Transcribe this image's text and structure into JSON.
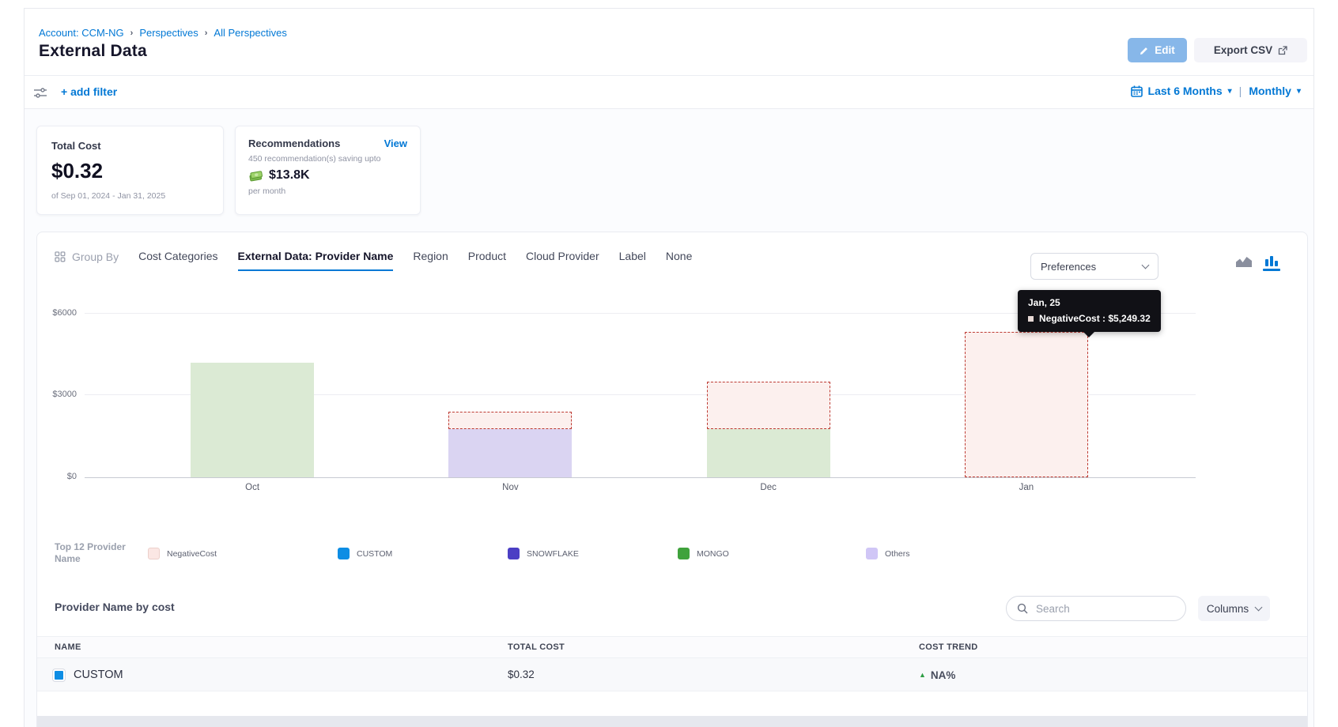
{
  "header": {
    "breadcrumb": {
      "separator": "›",
      "items": [
        "Account: CCM-NG",
        "Perspectives",
        "All Perspectives"
      ]
    },
    "title": "External Data",
    "edit_label": "Edit",
    "export_label": "Export CSV"
  },
  "filter_bar": {
    "add_filter_label": "+ add filter",
    "date_range_label": "Last 6 Months",
    "divider": "|",
    "granularity_label": "Monthly"
  },
  "summary_cards": {
    "total_cost": {
      "label": "Total Cost",
      "value": "$0.32",
      "period": "of Sep 01, 2024 - Jan 31, 2025"
    },
    "recommendations": {
      "label": "Recommendations",
      "view_link": "View",
      "description": "450 recommendation(s) saving upto",
      "amount": "$13.8K",
      "per": "per month"
    }
  },
  "group_by": {
    "label": "Group By",
    "tabs": [
      {
        "label": "Cost Categories",
        "active": false
      },
      {
        "label": "External Data: Provider Name",
        "active": true
      },
      {
        "label": "Region",
        "active": false
      },
      {
        "label": "Product",
        "active": false
      },
      {
        "label": "Cloud Provider",
        "active": false
      },
      {
        "label": "Label",
        "active": false
      },
      {
        "label": "None",
        "active": false
      }
    ],
    "preferences_label": "Preferences"
  },
  "chart_data": {
    "type": "bar",
    "stacked": true,
    "x": [
      "Oct",
      "Nov",
      "Dec",
      "Jan"
    ],
    "ylim": [
      0,
      6000
    ],
    "yticks_top_to_bottom": [
      "$6000",
      "$3000",
      "$0"
    ],
    "grid": true,
    "legend_position": "bottom",
    "series": [
      {
        "name": "MONGO",
        "style": "solid",
        "fill": "#dbead4",
        "values": [
          4150,
          0,
          1740,
          0
        ]
      },
      {
        "name": "SNOWFLAKE",
        "style": "solid",
        "fill": "#dad4f2",
        "values": [
          0,
          1740,
          0,
          0
        ]
      },
      {
        "name": "NegativeCost",
        "style": "dashed",
        "fill": "#fcf0ee",
        "border": "#bd3a32",
        "values": [
          0,
          630,
          1720,
          5249.32
        ]
      }
    ],
    "tooltip": {
      "title": "Jan, 25",
      "text": "NegativeCost : $5,249.32"
    }
  },
  "legend": {
    "title_line1": "Top 12 Provider",
    "title_line2": "Name",
    "items": [
      {
        "label": "NegativeCost",
        "color": "#fbe7e4",
        "border": "#eccfca"
      },
      {
        "label": "CUSTOM",
        "color": "#0d8de4",
        "border": "#0d8de4"
      },
      {
        "label": "SNOWFLAKE",
        "color": "#4b3fc4",
        "border": "#4b3fc4"
      },
      {
        "label": "MONGO",
        "color": "#3fa23c",
        "border": "#3fa23c"
      },
      {
        "label": "Others",
        "color": "#d0c6f6",
        "border": "#d0c6f6"
      }
    ]
  },
  "table": {
    "title": "Provider Name by cost",
    "search_placeholder": "Search",
    "columns_label": "Columns",
    "headers": [
      "NAME",
      "TOTAL COST",
      "COST TREND"
    ],
    "rows": [
      {
        "name": "CUSTOM",
        "swatch_color": "#0d8de4",
        "total_cost": "$0.32",
        "trend": "NA%",
        "trend_direction": "up"
      }
    ]
  },
  "colors": {
    "accent_blue": "#0278d5",
    "trend_up_green": "#2f9e44",
    "tooltip_bg": "#111116"
  }
}
